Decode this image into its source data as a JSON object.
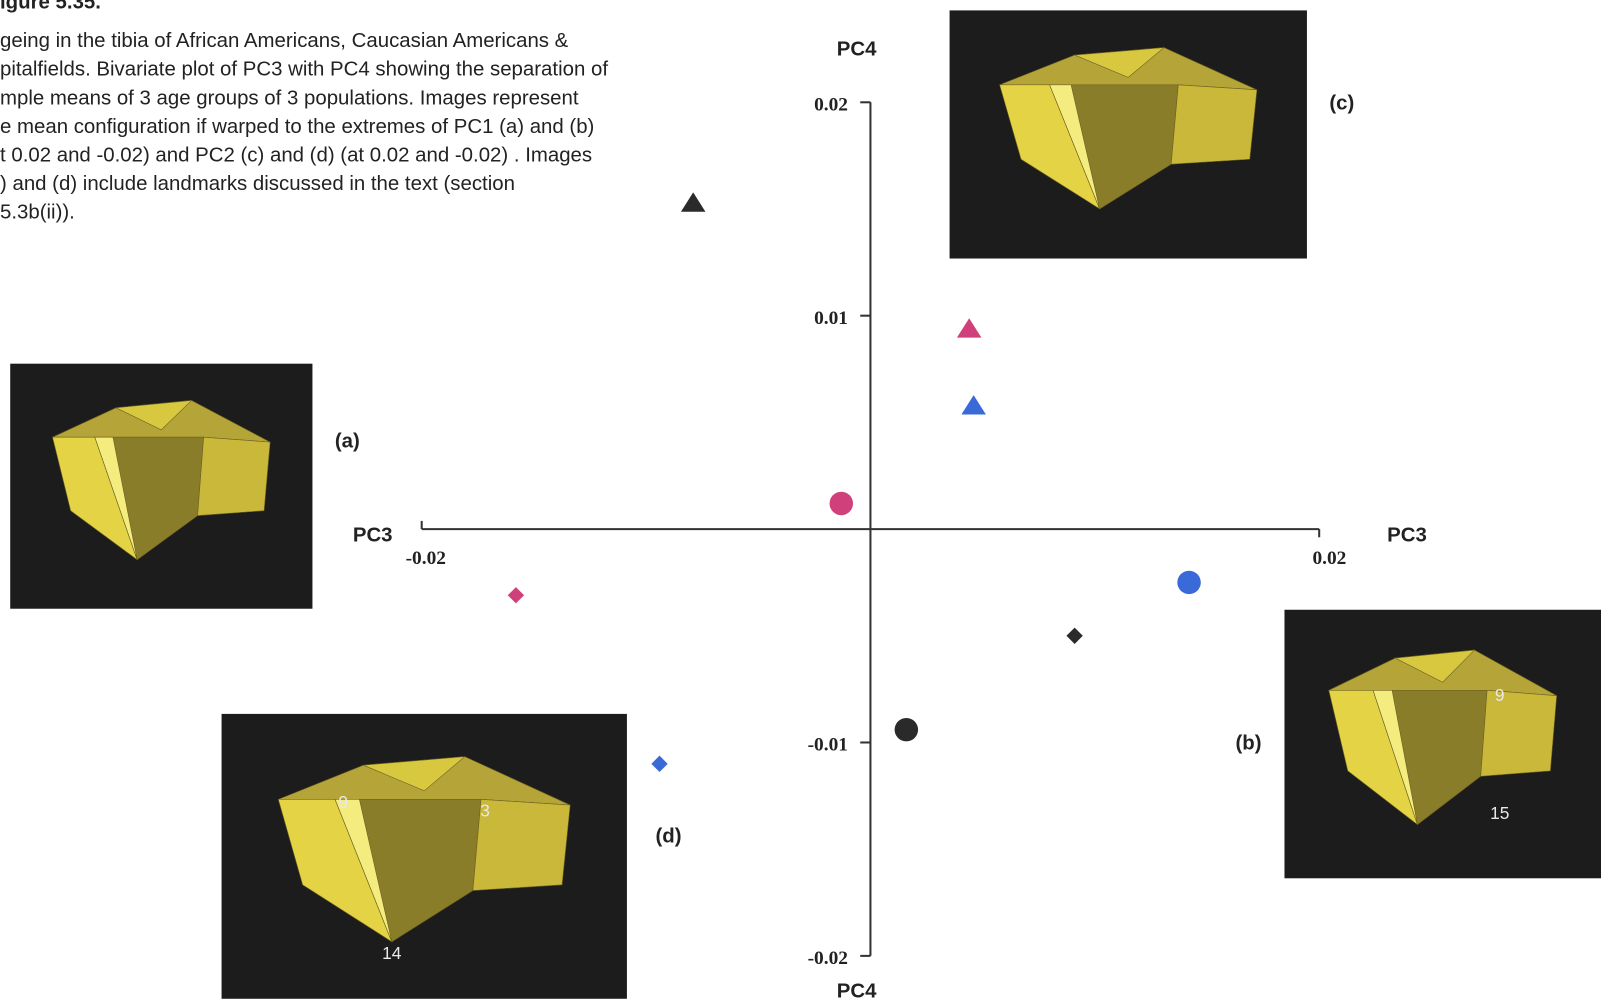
{
  "chart_data": {
    "type": "scatter",
    "figure_label": "igure 5.35.",
    "caption": [
      "geing in the tibia of African Americans, Caucasian Americans &",
      "pitalfields. Bivariate plot of PC3 with PC4 showing the separation of",
      "mple means of 3 age groups of 3 populations. Images represent",
      "e mean configuration if warped to the extremes of PC1 (a) and (b)",
      "t 0.02 and -0.02) and PC2 (c) and (d) (at 0.02 and -0.02) . Images",
      ") and (d) include landmarks discussed in the text (section",
      "5.3b(ii))."
    ],
    "x_label": "PC3",
    "y_label": "PC4",
    "xlim": [
      -0.02,
      0.02
    ],
    "ylim": [
      -0.02,
      0.02
    ],
    "xticks": [
      -0.02,
      0.02
    ],
    "yticks": [
      0.02,
      0.01,
      -0.01,
      -0.02
    ],
    "series": [
      {
        "marker": "triangle",
        "colors": [
          "#2a2a2a",
          "#d0407a",
          "#3a6ad8"
        ],
        "x": [
          -0.0079,
          0.0044,
          0.0046
        ],
        "values": [
          0.0153,
          0.0094,
          0.0058
        ]
      },
      {
        "marker": "circle",
        "colors": [
          "#d0407a",
          "#3a6ad8",
          "#2a2a2a"
        ],
        "x": [
          -0.0013,
          0.0142,
          0.0016
        ],
        "values": [
          0.0012,
          -0.0025,
          -0.0094
        ]
      },
      {
        "marker": "diamond",
        "colors": [
          "#2a2a2a",
          "#d0407a",
          "#3a6ad8"
        ],
        "x": [
          0.0091,
          -0.0158,
          -0.0094
        ],
        "values": [
          -0.005,
          -0.0031,
          -0.011
        ]
      }
    ],
    "panels": [
      {
        "label": "(a)",
        "landmarks": []
      },
      {
        "label": "(b)",
        "landmarks": [
          "9",
          "15"
        ]
      },
      {
        "label": "(c)",
        "landmarks": []
      },
      {
        "label": "(d)",
        "landmarks": [
          "9",
          "3",
          "14"
        ]
      }
    ]
  }
}
